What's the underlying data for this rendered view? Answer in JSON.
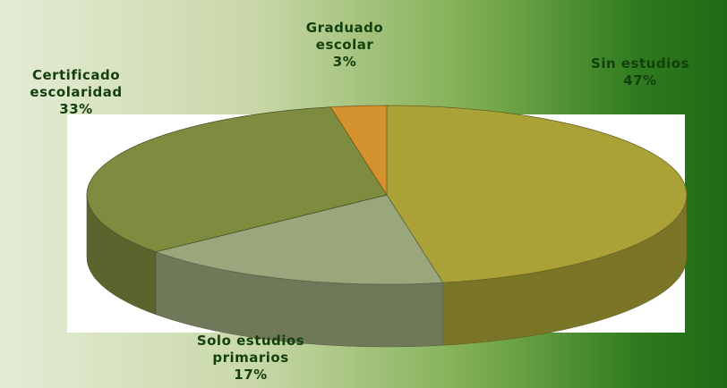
{
  "chart_data": {
    "type": "pie",
    "categories": [
      "Sin estudios",
      "Solo estudios primarios",
      "Certificado escolaridad",
      "Graduado escolar"
    ],
    "values": [
      47,
      17,
      33,
      3
    ],
    "value_labels": [
      "47%",
      "17%",
      "33%",
      "3%"
    ],
    "colors": [
      "#aaa236",
      "#9aa67c",
      "#7d8c3e",
      "#d4922e"
    ]
  }
}
